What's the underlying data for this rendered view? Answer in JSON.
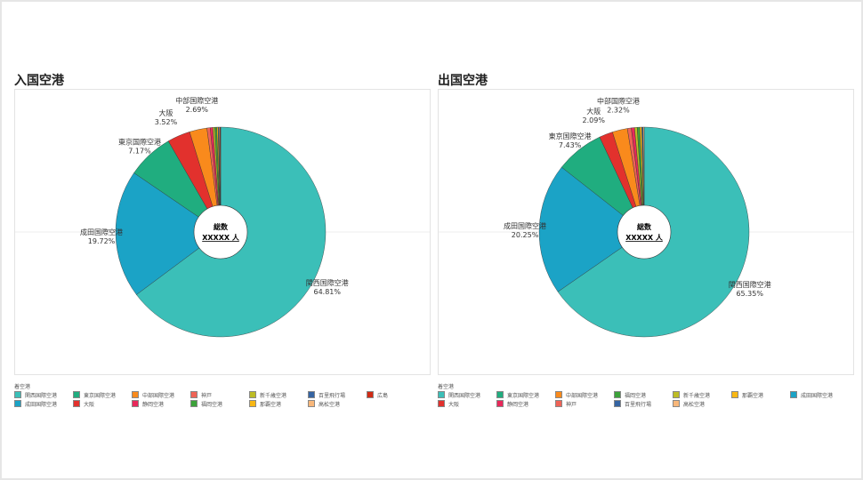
{
  "legend_title": "着空港",
  "center_label": {
    "line1": "総数",
    "line2": "XXXXX 人"
  },
  "chart_data": [
    {
      "type": "pie",
      "title": "入国空港",
      "slices": [
        {
          "label": "関西国際空港",
          "value": 64.81,
          "color": "#3bbfb8",
          "show": true
        },
        {
          "label": "成田国際空港",
          "value": 19.72,
          "color": "#1ba3c6",
          "show": true
        },
        {
          "label": "東京国際空港",
          "value": 7.17,
          "color": "#20ad7f",
          "show": true
        },
        {
          "label": "大阪",
          "value": 3.52,
          "color": "#e2312d",
          "show": true
        },
        {
          "label": "中部国際空港",
          "value": 2.69,
          "color": "#f98a1c",
          "show": true
        },
        {
          "label": "神戸",
          "value": 0.5,
          "color": "#ef6356"
        },
        {
          "label": "静岡空港",
          "value": 0.4,
          "color": "#e8285a"
        },
        {
          "label": "新千歳空港",
          "value": 0.3,
          "color": "#bdbc25"
        },
        {
          "label": "福岡空港",
          "value": 0.3,
          "color": "#3ca23a"
        },
        {
          "label": "那覇空港",
          "value": 0.2,
          "color": "#f8b714"
        },
        {
          "label": "百里飛行場",
          "value": 0.15,
          "color": "#3564a2"
        },
        {
          "label": "高松空港",
          "value": 0.14,
          "color": "#f8b77a"
        },
        {
          "label": "広島",
          "value": 0.1,
          "color": "#d02a14"
        }
      ],
      "legend": [
        "関西国際空港",
        "東京国際空港",
        "中部国際空港",
        "神戸",
        "新千歳空港",
        "百里飛行場",
        "広島",
        "成田国際空港",
        "大阪",
        "静岡空港",
        "福岡空港",
        "那覇空港",
        "高松空港"
      ]
    },
    {
      "type": "pie",
      "title": "出国空港",
      "slices": [
        {
          "label": "関西国際空港",
          "value": 65.35,
          "color": "#3bbfb8",
          "show": true
        },
        {
          "label": "成田国際空港",
          "value": 20.25,
          "color": "#1ba3c6",
          "show": true
        },
        {
          "label": "東京国際空港",
          "value": 7.43,
          "color": "#20ad7f",
          "show": true
        },
        {
          "label": "大阪",
          "value": 2.09,
          "color": "#e2312d",
          "show": true
        },
        {
          "label": "中部国際空港",
          "value": 2.32,
          "color": "#f98a1c",
          "show": true
        },
        {
          "label": "神戸",
          "value": 0.6,
          "color": "#ef6356"
        },
        {
          "label": "静岡空港",
          "value": 0.5,
          "color": "#e8285a"
        },
        {
          "label": "新千歳空港",
          "value": 0.4,
          "color": "#bdbc25"
        },
        {
          "label": "福岡空港",
          "value": 0.4,
          "color": "#3ca23a"
        },
        {
          "label": "那覇空港",
          "value": 0.3,
          "color": "#f8b714"
        },
        {
          "label": "百里飛行場",
          "value": 0.2,
          "color": "#3564a2"
        },
        {
          "label": "高松空港",
          "value": 0.16,
          "color": "#f8b77a"
        }
      ],
      "legend": [
        "関西国際空港",
        "東京国際空港",
        "中部国際空港",
        "福岡空港",
        "新千歳空港",
        "那覇空港",
        "成田国際空港",
        "大阪",
        "静岡空港",
        "神戸",
        "百里飛行場",
        "高松空港"
      ]
    }
  ]
}
